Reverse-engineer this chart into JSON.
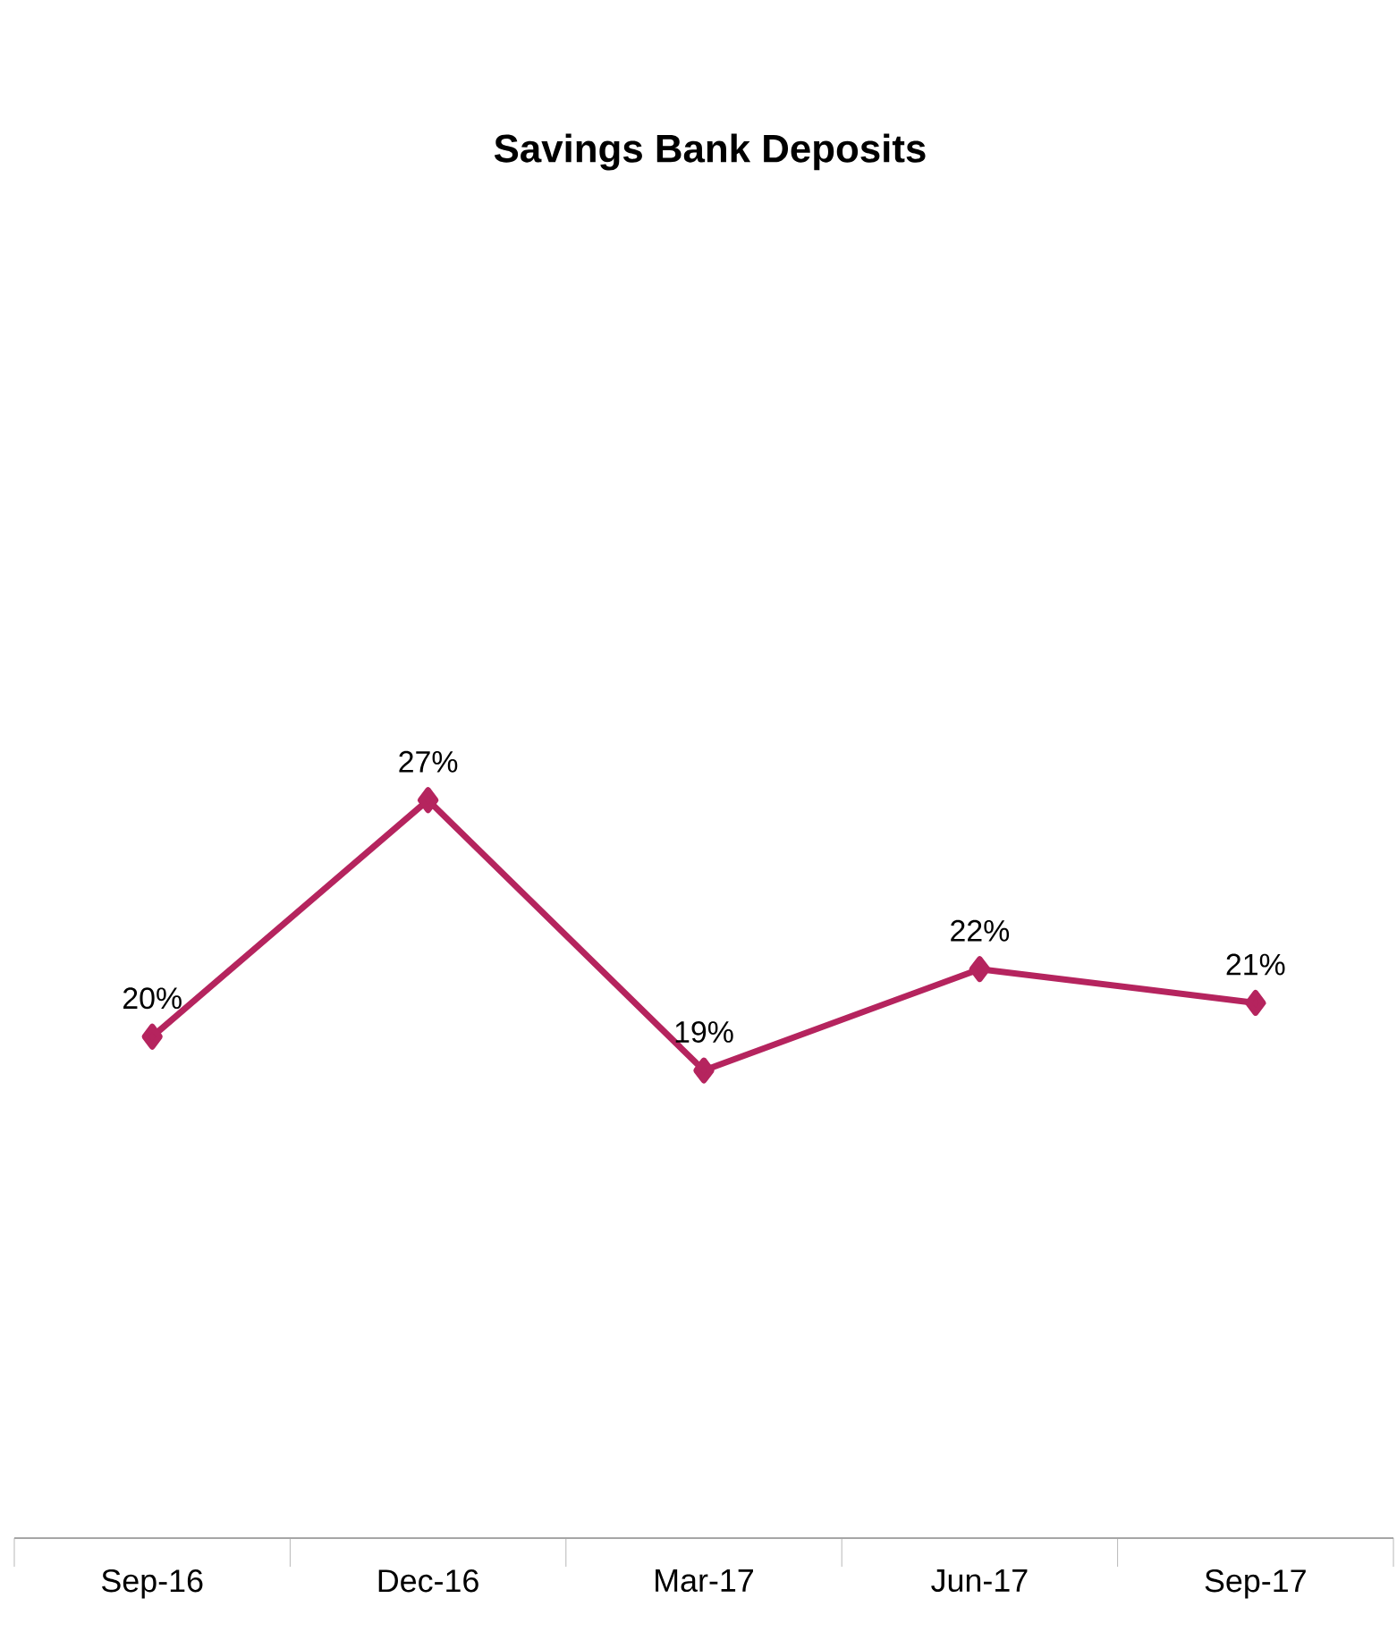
{
  "chart_data": {
    "type": "line",
    "title": "Savings Bank Deposits",
    "categories": [
      "Sep-16",
      "Dec-16",
      "Mar-17",
      "Jun-17",
      "Sep-17"
    ],
    "series": [
      {
        "color": "#b5245e",
        "values": [
          20,
          27,
          19,
          22,
          21
        ],
        "value_labels": [
          "20%",
          "27%",
          "19%",
          "22%",
          "21%"
        ]
      }
    ],
    "tick_labels": "x",
    "marker": "diamond",
    "line_style": "solid"
  }
}
